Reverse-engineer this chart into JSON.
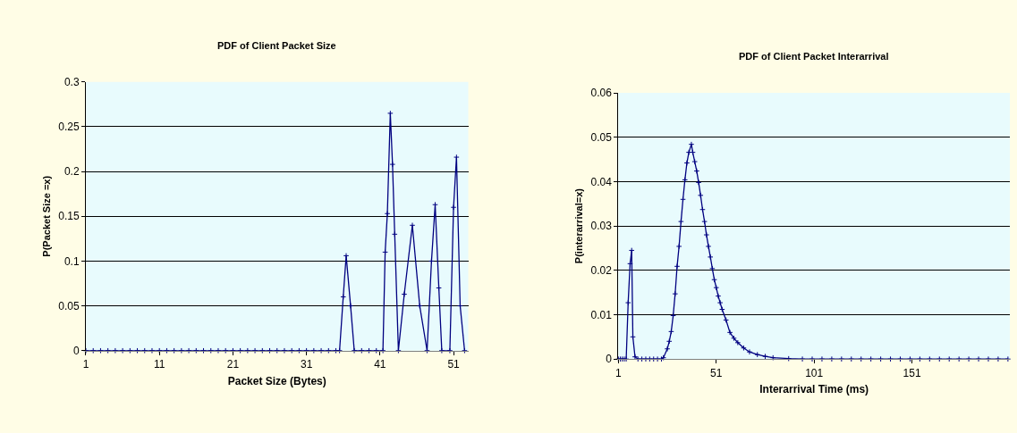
{
  "chart_data": [
    {
      "type": "line",
      "title": "PDF of Client Packet Size",
      "xlabel": "Packet Size (Bytes)",
      "ylabel": "P(Packet Size =x)",
      "x": [
        1,
        2,
        3,
        4,
        5,
        6,
        7,
        8,
        9,
        10,
        11,
        12,
        13,
        14,
        15,
        16,
        17,
        18,
        19,
        20,
        21,
        22,
        23,
        24,
        25,
        26,
        27,
        28,
        29,
        30,
        31,
        32,
        33,
        34,
        35,
        35.5,
        36,
        36.4,
        37,
        37.5,
        38.5,
        39.5,
        40.5,
        41.4,
        41.7,
        42.0,
        42.4,
        42.7,
        43.0,
        43.5,
        44.3,
        45.4,
        46.4,
        47.4,
        48.0,
        48.5,
        49.0,
        49.4,
        50.5,
        51.0,
        51.4,
        51.9,
        52.5
      ],
      "series": [
        {
          "color": "#000080",
          "values": [
            0,
            0,
            0,
            0,
            0,
            0,
            0,
            0,
            0,
            0,
            0,
            0,
            0,
            0,
            0,
            0,
            0,
            0,
            0,
            0,
            0,
            0,
            0,
            0,
            0,
            0,
            0,
            0,
            0,
            0,
            0,
            0,
            0,
            0,
            0,
            0,
            0.06,
            0.106,
            0.05,
            0,
            0,
            0,
            0,
            0,
            0.11,
            0.153,
            0.265,
            0.208,
            0.13,
            0,
            0.063,
            0.14,
            0.05,
            0,
            0.1,
            0.163,
            0.07,
            0,
            0,
            0.16,
            0.216,
            0.05,
            0
          ]
        }
      ],
      "xlim": [
        1,
        53
      ],
      "xticks": [
        1,
        11,
        21,
        31,
        41,
        51
      ],
      "ylim": [
        0,
        0.3
      ],
      "yticks": [
        0,
        0.05,
        0.1,
        0.15,
        0.2,
        0.25,
        0.3
      ],
      "grid": "y",
      "marker": "cross",
      "line_style": "solid"
    },
    {
      "type": "line",
      "title": "PDF of Client Packet Interarrival",
      "xlabel": "Interarrival Time (ms)",
      "ylabel": "P(interarrival=x)",
      "x": [
        1,
        2,
        3,
        4,
        5,
        6,
        7,
        7.8,
        8.4,
        9.5,
        11,
        13,
        15,
        17,
        19,
        21,
        23,
        24,
        26,
        27,
        28,
        29,
        30,
        31,
        32,
        33,
        34,
        35,
        36,
        37,
        38.3,
        39,
        40,
        41,
        42,
        43,
        44,
        45,
        46,
        47,
        48,
        49,
        50,
        51,
        52,
        53,
        54,
        56,
        58,
        60,
        62,
        65,
        68,
        72,
        76,
        80,
        88,
        95,
        100,
        105,
        110,
        115,
        120,
        125,
        130,
        135,
        140,
        145,
        150,
        155,
        160,
        165,
        170,
        175,
        180,
        185,
        190,
        195,
        200
      ],
      "series": [
        {
          "color": "#000080",
          "values": [
            0,
            0,
            0,
            0,
            0,
            0.0127,
            0.0215,
            0.0245,
            0.005,
            0.0005,
            0,
            0,
            0,
            0,
            0,
            0,
            0,
            0.0003,
            0.0023,
            0.004,
            0.0062,
            0.0098,
            0.0147,
            0.0209,
            0.0254,
            0.031,
            0.036,
            0.0404,
            0.0442,
            0.0466,
            0.0484,
            0.0466,
            0.0445,
            0.0424,
            0.0398,
            0.0369,
            0.0337,
            0.031,
            0.028,
            0.0254,
            0.023,
            0.0204,
            0.0179,
            0.0161,
            0.0142,
            0.0127,
            0.0112,
            0.0088,
            0.006,
            0.0047,
            0.0037,
            0.0025,
            0.0016,
            0.001,
            0.0006,
            0.0003,
            0.0001,
            0,
            0,
            0,
            0,
            0,
            0,
            0,
            0,
            0,
            0,
            0,
            0,
            0,
            0,
            0,
            0,
            0,
            0,
            0,
            0,
            0,
            0
          ]
        }
      ],
      "xlim": [
        1,
        201
      ],
      "xticks": [
        1,
        51,
        101,
        151
      ],
      "ylim": [
        0,
        0.06
      ],
      "yticks": [
        0,
        0.01,
        0.02,
        0.03,
        0.04,
        0.05,
        0.06
      ],
      "grid": "y",
      "marker": "cross",
      "line_style": "solid"
    }
  ]
}
